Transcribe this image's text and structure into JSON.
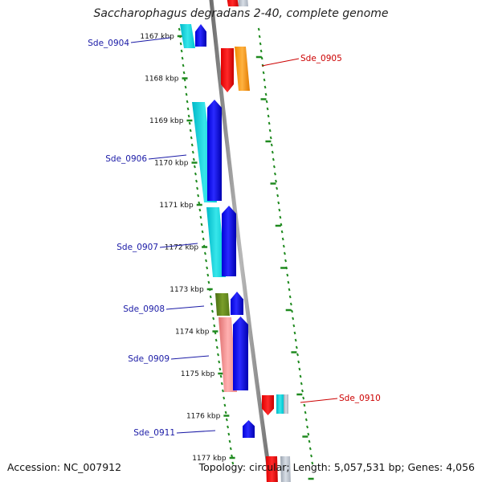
{
  "title": "Saccharophagus degradans 2-40, complete genome",
  "footer": {
    "accession": "Accession: NC_007912",
    "summary": "Topology: circular; Length: 5,057,531 bp; Genes: 4,056"
  },
  "colors": {
    "backbone": "#8a8a8a",
    "tick": "#1f8a1f",
    "label_forward": "#1a1aa6",
    "label_reverse": "#cc0000"
  },
  "ticks": [
    "1167 kbp",
    "1168 kbp",
    "1169 kbp",
    "1170 kbp",
    "1171 kbp",
    "1172 kbp",
    "1173 kbp",
    "1174 kbp",
    "1175 kbp",
    "1176 kbp",
    "1177 kbp"
  ],
  "genes": [
    {
      "id": "Sde_0904",
      "strand": "forward"
    },
    {
      "id": "Sde_0905",
      "strand": "reverse"
    },
    {
      "id": "Sde_0906",
      "strand": "forward"
    },
    {
      "id": "Sde_0907",
      "strand": "forward"
    },
    {
      "id": "Sde_0908",
      "strand": "forward"
    },
    {
      "id": "Sde_0909",
      "strand": "forward"
    },
    {
      "id": "Sde_0910",
      "strand": "reverse"
    },
    {
      "id": "Sde_0911",
      "strand": "forward"
    }
  ]
}
